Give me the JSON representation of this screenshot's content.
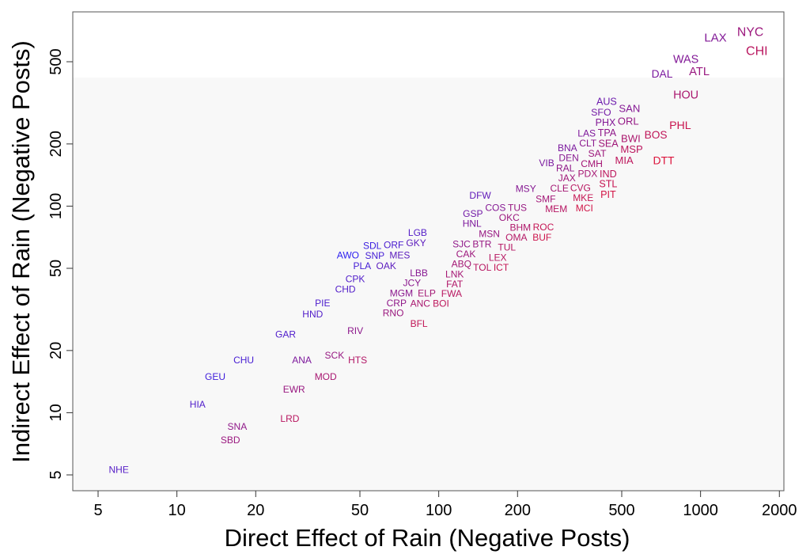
{
  "chart_data": {
    "type": "scatter",
    "title": "",
    "xlabel": "Direct Effect of Rain (Negative Posts)",
    "ylabel": "Indirect Effect of Rain (Negative Posts)",
    "xscale": "log",
    "yscale": "log",
    "xlim": [
      4.2,
      2150
    ],
    "ylim": [
      4.2,
      950
    ],
    "xticks": [
      5,
      10,
      20,
      50,
      100,
      200,
      500,
      1000,
      2000
    ],
    "yticks": [
      5,
      10,
      20,
      50,
      100,
      200,
      500
    ],
    "grid": false,
    "marker": "text-label",
    "colors": {
      "high_ratio": "#2a1ef0",
      "low_ratio": "#dc143c",
      "background": "#f8f8f8"
    },
    "points": [
      {
        "label": "NYC",
        "x": 1550,
        "y": 700
      },
      {
        "label": "LAX",
        "x": 1140,
        "y": 658
      },
      {
        "label": "CHI",
        "x": 1640,
        "y": 566
      },
      {
        "label": "WAS",
        "x": 879,
        "y": 505
      },
      {
        "label": "ATL",
        "x": 989,
        "y": 462
      },
      {
        "label": "DAL",
        "x": 713,
        "y": 438
      },
      {
        "label": "HOU",
        "x": 879,
        "y": 348
      },
      {
        "label": "AUS",
        "x": 441,
        "y": 310
      },
      {
        "label": "SAN",
        "x": 532,
        "y": 297
      },
      {
        "label": "SFO",
        "x": 417,
        "y": 274
      },
      {
        "label": "PHX",
        "x": 435,
        "y": 249
      },
      {
        "label": "ORL",
        "x": 528,
        "y": 258
      },
      {
        "label": "PHL",
        "x": 831,
        "y": 247
      },
      {
        "label": "BOS",
        "x": 679,
        "y": 222
      },
      {
        "label": "LAS",
        "x": 371,
        "y": 222
      },
      {
        "label": "TPA",
        "x": 435,
        "y": 222
      },
      {
        "label": "BWI",
        "x": 536,
        "y": 211
      },
      {
        "label": "CLT",
        "x": 373,
        "y": 198
      },
      {
        "label": "SEA",
        "x": 451,
        "y": 196
      },
      {
        "label": "BNA",
        "x": 310,
        "y": 191
      },
      {
        "label": "MSP",
        "x": 540,
        "y": 184
      },
      {
        "label": "SAT",
        "x": 403,
        "y": 180
      },
      {
        "label": "MIA",
        "x": 511,
        "y": 171
      },
      {
        "label": "DEN",
        "x": 314,
        "y": 171
      },
      {
        "label": "DTT",
        "x": 723,
        "y": 167
      },
      {
        "label": "CMH",
        "x": 384,
        "y": 162
      },
      {
        "label": "VIB",
        "x": 262,
        "y": 162
      },
      {
        "label": "RAL",
        "x": 301,
        "y": 153
      },
      {
        "label": "PDX",
        "x": 366,
        "y": 151
      },
      {
        "label": "IND",
        "x": 444,
        "y": 149
      },
      {
        "label": "JAX",
        "x": 312,
        "y": 136
      },
      {
        "label": "STL",
        "x": 444,
        "y": 136
      },
      {
        "label": "CLE",
        "x": 289,
        "y": 121
      },
      {
        "label": "CVG",
        "x": 348,
        "y": 121
      },
      {
        "label": "PIT",
        "x": 444,
        "y": 121
      },
      {
        "label": "MSY",
        "x": 215,
        "y": 119
      },
      {
        "label": "DFW",
        "x": 144,
        "y": 113
      },
      {
        "label": "SMF",
        "x": 256,
        "y": 110
      },
      {
        "label": "MKE",
        "x": 356,
        "y": 110
      },
      {
        "label": "MEM",
        "x": 281,
        "y": 100
      },
      {
        "label": "MCI",
        "x": 360,
        "y": 100
      },
      {
        "label": "GSP",
        "x": 135,
        "y": 90
      },
      {
        "label": "COS",
        "x": 166,
        "y": 93
      },
      {
        "label": "TUS",
        "x": 198,
        "y": 93
      },
      {
        "label": "HNL",
        "x": 134,
        "y": 81
      },
      {
        "label": "OKC",
        "x": 186,
        "y": 85
      },
      {
        "label": "BHM",
        "x": 205,
        "y": 78
      },
      {
        "label": "ROC",
        "x": 251,
        "y": 78
      },
      {
        "label": "MSN",
        "x": 156,
        "y": 74
      },
      {
        "label": "OMA",
        "x": 198,
        "y": 72
      },
      {
        "label": "BUF",
        "x": 248,
        "y": 72
      },
      {
        "label": "BTR",
        "x": 143,
        "y": 68
      },
      {
        "label": "TUL",
        "x": 182,
        "y": 65
      },
      {
        "label": "SJC",
        "x": 125,
        "y": 63
      },
      {
        "label": "LEX",
        "x": 168,
        "y": 59
      },
      {
        "label": "CAK",
        "x": 127,
        "y": 57
      },
      {
        "label": "ABQ",
        "x": 124,
        "y": 52
      },
      {
        "label": "TOL",
        "x": 147,
        "y": 52
      },
      {
        "label": "ICT",
        "x": 170,
        "y": 53
      },
      {
        "label": "LNK",
        "x": 115,
        "y": 48
      },
      {
        "label": "LGB",
        "x": 83,
        "y": 74
      },
      {
        "label": "GKY",
        "x": 82,
        "y": 67
      },
      {
        "label": "ORF",
        "x": 67,
        "y": 65
      },
      {
        "label": "SDL",
        "x": 56,
        "y": 63
      },
      {
        "label": "SNP",
        "x": 57,
        "y": 58
      },
      {
        "label": "MES",
        "x": 71,
        "y": 58
      },
      {
        "label": "AWO",
        "x": 45,
        "y": 58
      },
      {
        "label": "PLA",
        "x": 51,
        "y": 52
      },
      {
        "label": "OAK",
        "x": 63,
        "y": 52
      },
      {
        "label": "CPK",
        "x": 48,
        "y": 44
      },
      {
        "label": "CHD",
        "x": 44,
        "y": 40
      },
      {
        "label": "LBB",
        "x": 84,
        "y": 46
      },
      {
        "label": "JCY",
        "x": 79,
        "y": 42
      },
      {
        "label": "MGM",
        "x": 72,
        "y": 38
      },
      {
        "label": "ELP",
        "x": 90,
        "y": 38
      },
      {
        "label": "FAT",
        "x": 115,
        "y": 43
      },
      {
        "label": "FWA",
        "x": 112,
        "y": 39
      },
      {
        "label": "CRP",
        "x": 69,
        "y": 35
      },
      {
        "label": "ANC",
        "x": 85,
        "y": 34
      },
      {
        "label": "BOI",
        "x": 102,
        "y": 34
      },
      {
        "label": "RNO",
        "x": 67,
        "y": 31
      },
      {
        "label": "BFL",
        "x": 84,
        "y": 27
      },
      {
        "label": "PIE",
        "x": 36,
        "y": 34
      },
      {
        "label": "HND",
        "x": 33,
        "y": 30
      },
      {
        "label": "RIV",
        "x": 48,
        "y": 25
      },
      {
        "label": "GAR",
        "x": 26,
        "y": 24
      },
      {
        "label": "ANA",
        "x": 30,
        "y": 18
      },
      {
        "label": "SCK",
        "x": 40,
        "y": 19
      },
      {
        "label": "HTS",
        "x": 49,
        "y": 18
      },
      {
        "label": "CHU",
        "x": 18,
        "y": 18
      },
      {
        "label": "MOD",
        "x": 37,
        "y": 15
      },
      {
        "label": "GEU",
        "x": 14,
        "y": 15
      },
      {
        "label": "EWR",
        "x": 28,
        "y": 13
      },
      {
        "label": "HIA",
        "x": 12,
        "y": 11
      },
      {
        "label": "LRD",
        "x": 27,
        "y": 9.4
      },
      {
        "label": "SNA",
        "x": 17,
        "y": 8.6
      },
      {
        "label": "SBD",
        "x": 16,
        "y": 7.4
      },
      {
        "label": "NHE",
        "x": 6,
        "y": 5.3
      }
    ]
  }
}
